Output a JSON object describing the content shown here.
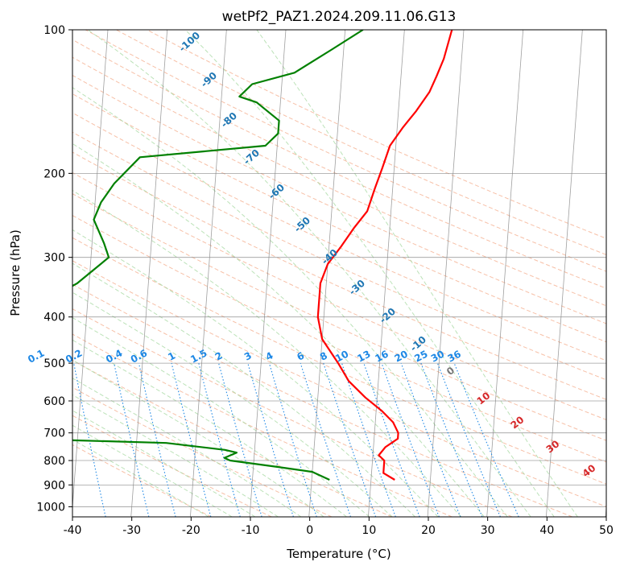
{
  "chart_data": {
    "type": "line",
    "title": "wetPf2_PAZ1.2024.209.11.06.G13",
    "xlabel": "Temperature (°C)",
    "ylabel": "Pressure (hPa)",
    "xlim": [
      -40,
      50
    ],
    "ylim": [
      1050,
      100
    ],
    "y_scale": "log",
    "x_ticks": [
      -40,
      -30,
      -20,
      -10,
      0,
      10,
      20,
      30,
      40,
      50
    ],
    "y_ticks": [
      1000,
      900,
      800,
      700,
      600,
      500,
      400,
      300,
      200,
      100
    ],
    "grid": true,
    "series": [
      {
        "color": "#ff0000",
        "points": [
          [
            14,
            878
          ],
          [
            12,
            850
          ],
          [
            12,
            800
          ],
          [
            11,
            780
          ],
          [
            12,
            750
          ],
          [
            13,
            735
          ],
          [
            14,
            720
          ],
          [
            14,
            700
          ],
          [
            13,
            665
          ],
          [
            11,
            630
          ],
          [
            8,
            590
          ],
          [
            5,
            545
          ],
          [
            3,
            500
          ],
          [
            0,
            445
          ],
          [
            -1,
            400
          ],
          [
            -1,
            370
          ],
          [
            -1,
            340
          ],
          [
            0,
            310
          ],
          [
            2,
            285
          ],
          [
            4,
            260
          ],
          [
            6,
            240
          ],
          [
            7,
            215
          ],
          [
            8,
            195
          ],
          [
            9,
            175
          ],
          [
            11,
            160
          ],
          [
            13,
            148
          ],
          [
            15,
            135
          ],
          [
            16,
            125
          ],
          [
            17,
            115
          ],
          [
            18,
            100
          ]
        ]
      },
      {
        "color": "#008000",
        "points": [
          [
            3,
            878
          ],
          [
            0,
            845
          ],
          [
            -6,
            825
          ],
          [
            -14,
            800
          ],
          [
            -15,
            790
          ],
          [
            -13,
            770
          ],
          [
            -15,
            760
          ],
          [
            -25,
            735
          ],
          [
            -50,
            720
          ],
          [
            -52,
            715
          ],
          [
            -52,
            400
          ],
          [
            -42,
            340
          ],
          [
            -37,
            300
          ],
          [
            -38,
            280
          ],
          [
            -40,
            250
          ],
          [
            -39,
            230
          ],
          [
            -37,
            210
          ],
          [
            -33,
            185
          ],
          [
            -12,
            175
          ],
          [
            -10,
            165
          ],
          [
            -10,
            155
          ],
          [
            -14,
            142
          ],
          [
            -17,
            138
          ],
          [
            -15,
            130
          ],
          [
            -8,
            123
          ],
          [
            -2,
            110
          ],
          [
            3,
            100
          ]
        ]
      }
    ],
    "mixing_ratio_labels": [
      "0.1",
      "0.2",
      "0.4",
      "0.6",
      "1",
      "1.5",
      "2",
      "3",
      "4",
      "6",
      "8",
      "10",
      "13",
      "16",
      "20",
      "25",
      "30",
      "36"
    ],
    "dry_adiabat_labels": [
      "-100",
      "-90",
      "-80",
      "-70",
      "-60",
      "-50",
      "-40",
      "-30",
      "-20",
      "-10"
    ],
    "moist_adiabat_labels": [
      "0",
      "10",
      "20",
      "30",
      "40"
    ]
  }
}
